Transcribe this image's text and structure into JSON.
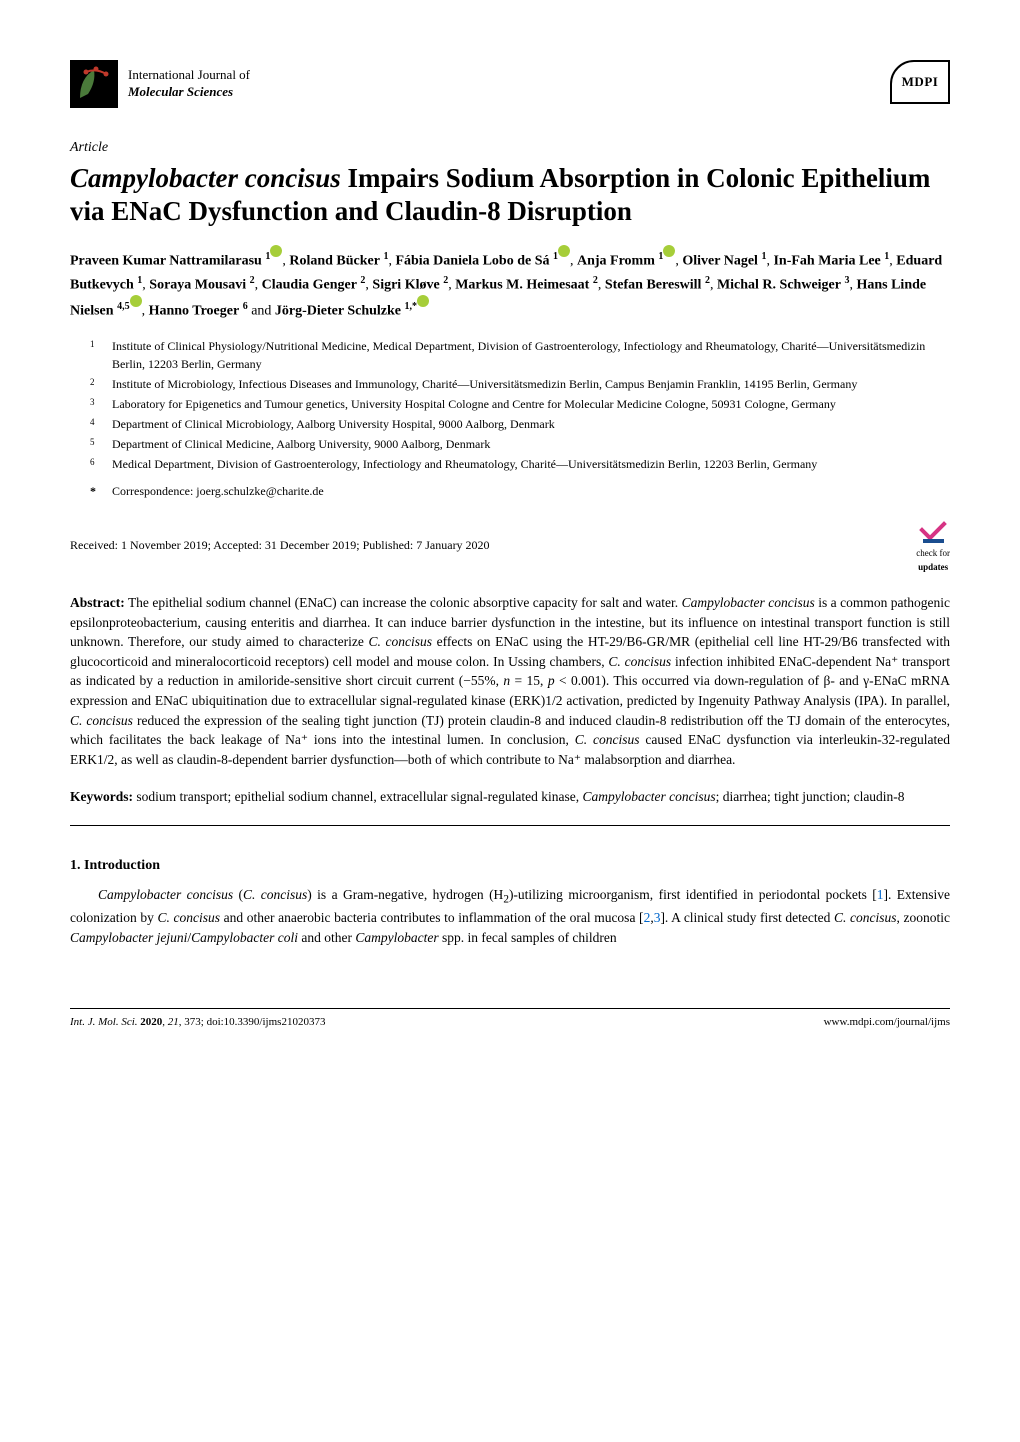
{
  "header": {
    "journal_line1": "International Journal of",
    "journal_line2": "Molecular Sciences",
    "publisher": "MDPI"
  },
  "article_type": "Article",
  "title_species": "Campylobacter concisus",
  "title_rest": " Impairs Sodium Absorption in Colonic Epithelium via ENaC Dysfunction and Claudin-8 Disruption",
  "authors": [
    {
      "name": "Praveen Kumar Nattramilarasu",
      "sup": "1",
      "orcid": true
    },
    {
      "name": "Roland Bücker",
      "sup": "1"
    },
    {
      "name": "Fábia Daniela Lobo de Sá",
      "sup": "1",
      "orcid": true
    },
    {
      "name": "Anja Fromm",
      "sup": "1",
      "orcid": true
    },
    {
      "name": "Oliver Nagel",
      "sup": "1"
    },
    {
      "name": "In-Fah Maria Lee",
      "sup": "1"
    },
    {
      "name": "Eduard Butkevych",
      "sup": "1"
    },
    {
      "name": "Soraya Mousavi",
      "sup": "2"
    },
    {
      "name": "Claudia Genger",
      "sup": "2"
    },
    {
      "name": "Sigri Kløve",
      "sup": "2"
    },
    {
      "name": "Markus M. Heimesaat",
      "sup": "2"
    },
    {
      "name": "Stefan Bereswill",
      "sup": "2"
    },
    {
      "name": "Michal R. Schweiger",
      "sup": "3"
    },
    {
      "name": "Hans Linde Nielsen",
      "sup": "4,5",
      "orcid": true
    },
    {
      "name": "Hanno Troeger",
      "sup": "6"
    },
    {
      "name": "Jörg-Dieter Schulzke",
      "sup": "1,*",
      "orcid": true
    }
  ],
  "affiliations": [
    {
      "num": "1",
      "text": "Institute of Clinical Physiology/Nutritional Medicine, Medical Department, Division of Gastroenterology, Infectiology and Rheumatology, Charité—Universitätsmedizin Berlin, 12203 Berlin, Germany"
    },
    {
      "num": "2",
      "text": "Institute of Microbiology, Infectious Diseases and Immunology, Charité—Universitätsmedizin Berlin, Campus Benjamin Franklin, 14195 Berlin, Germany"
    },
    {
      "num": "3",
      "text": "Laboratory for Epigenetics and Tumour genetics, University Hospital Cologne and Centre for Molecular Medicine Cologne, 50931 Cologne, Germany"
    },
    {
      "num": "4",
      "text": "Department of Clinical Microbiology, Aalborg University Hospital, 9000 Aalborg, Denmark"
    },
    {
      "num": "5",
      "text": "Department of Clinical Medicine, Aalborg University, 9000 Aalborg, Denmark"
    },
    {
      "num": "6",
      "text": "Medical Department, Division of Gastroenterology, Infectiology and Rheumatology, Charité—Universitätsmedizin Berlin, 12203 Berlin, Germany"
    }
  ],
  "correspondence": "Correspondence: joerg.schulzke@charite.de",
  "dates": "Received: 1 November 2019; Accepted: 31 December 2019; Published: 7 January 2020",
  "check_updates_line1": "check for",
  "check_updates_line2": "updates",
  "abstract_label": "Abstract:",
  "abstract_text": " The epithelial sodium channel (ENaC) can increase the colonic absorptive capacity for salt and water. Campylobacter concisus is a common pathogenic epsilonproteobacterium, causing enteritis and diarrhea. It can induce barrier dysfunction in the intestine, but its influence on intestinal transport function is still unknown. Therefore, our study aimed to characterize C. concisus effects on ENaC using the HT-29/B6-GR/MR (epithelial cell line HT-29/B6 transfected with glucocorticoid and mineralocorticoid receptors) cell model and mouse colon. In Ussing chambers, C. concisus infection inhibited ENaC-dependent Na⁺ transport as indicated by a reduction in amiloride-sensitive short circuit current (−55%, n = 15, p < 0.001). This occurred via down-regulation of β- and γ-ENaC mRNA expression and ENaC ubiquitination due to extracellular signal-regulated kinase (ERK)1/2 activation, predicted by Ingenuity Pathway Analysis (IPA). In parallel, C. concisus reduced the expression of the sealing tight junction (TJ) protein claudin-8 and induced claudin-8 redistribution off the TJ domain of the enterocytes, which facilitates the back leakage of Na⁺ ions into the intestinal lumen. In conclusion, C. concisus caused ENaC dysfunction via interleukin-32-regulated ERK1/2, as well as claudin-8-dependent barrier dysfunction—both of which contribute to Na⁺ malabsorption and diarrhea.",
  "keywords_label": "Keywords:",
  "keywords_text": " sodium transport; epithelial sodium channel, extracellular signal-regulated kinase, Campylobacter concisus; diarrhea; tight junction; claudin-8",
  "section_heading": "1. Introduction",
  "intro_text_1": "Campylobacter concisus (C. concisus) is a Gram-negative, hydrogen (H₂)-utilizing microorganism, first identified in periodontal pockets [",
  "intro_cite_1": "1",
  "intro_text_2": "]. Extensive colonization by C. concisus and other anaerobic bacteria contributes to inflammation of the oral mucosa [",
  "intro_cite_2": "2",
  "intro_cite_3": "3",
  "intro_text_3": "]. A clinical study first detected C. concisus, zoonotic Campylobacter jejuni/Campylobacter coli and other Campylobacter spp. in fecal samples of children",
  "footer_left": "Int. J. Mol. Sci. 2020, 21, 373; doi:10.3390/ijms21020373",
  "footer_right": "www.mdpi.com/journal/ijms",
  "colors": {
    "text": "#000000",
    "background": "#ffffff",
    "link": "#0066cc",
    "orcid": "#a6ce39",
    "check_pink": "#d63384",
    "check_blue": "#1a4d8f"
  }
}
